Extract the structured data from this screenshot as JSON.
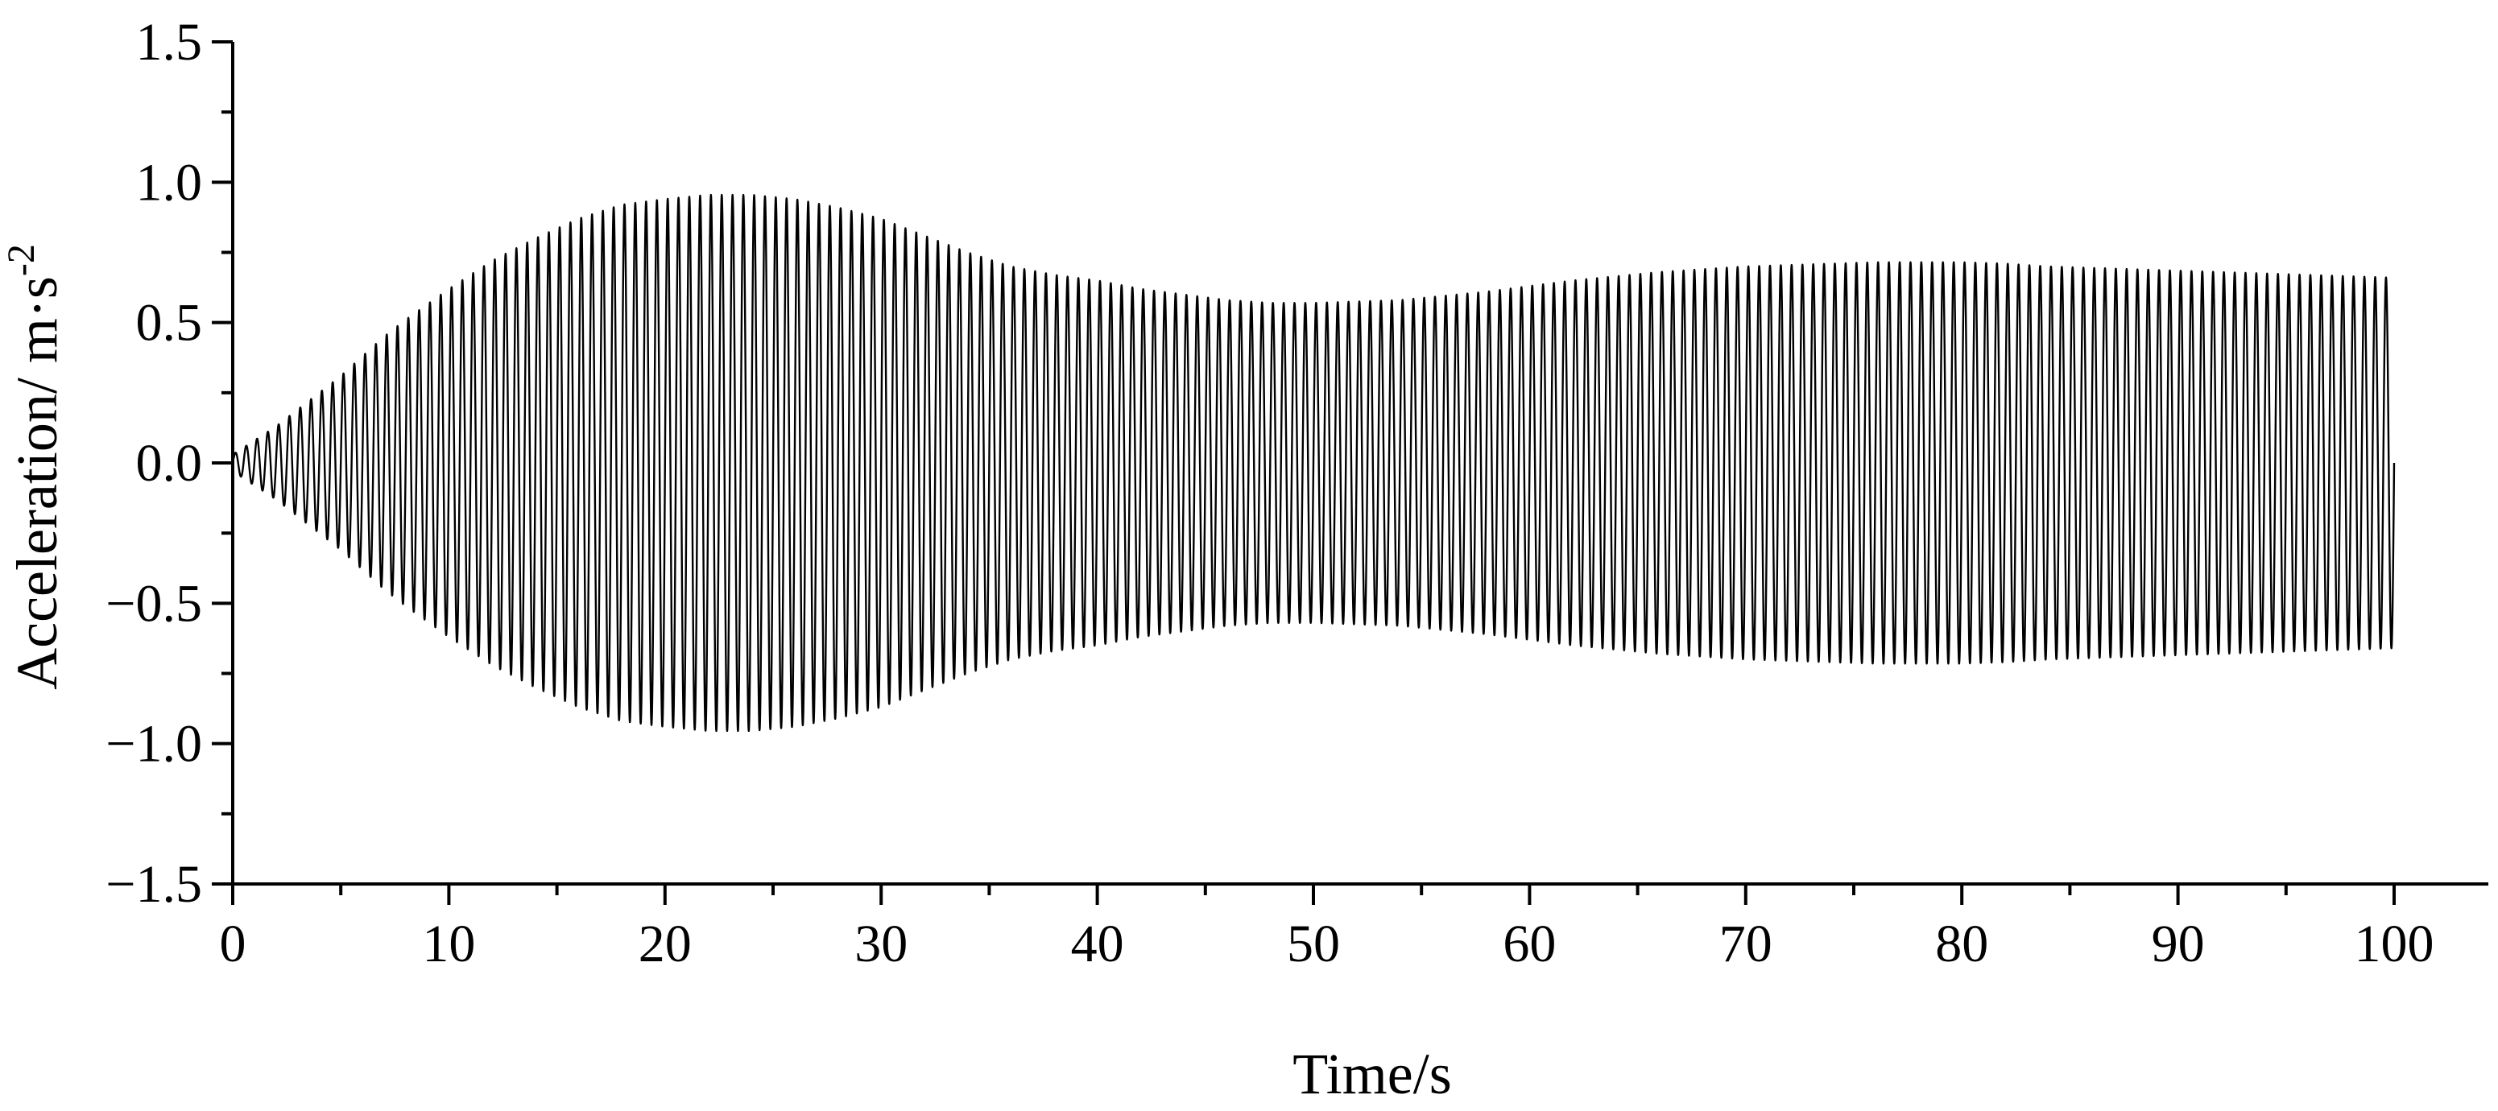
{
  "chart_data": {
    "type": "line",
    "title": "",
    "xlabel": "Time/s",
    "ylabel_main": "Acceleration/ m·s",
    "ylabel_sup": "-2",
    "xlim": [
      0,
      100
    ],
    "ylim": [
      -1.5,
      1.5
    ],
    "x_ticks": [
      {
        "value": 0,
        "label": "0"
      },
      {
        "value": 10,
        "label": "10"
      },
      {
        "value": 20,
        "label": "20"
      },
      {
        "value": 30,
        "label": "30"
      },
      {
        "value": 40,
        "label": "40"
      },
      {
        "value": 50,
        "label": "50"
      },
      {
        "value": 60,
        "label": "60"
      },
      {
        "value": 70,
        "label": "70"
      },
      {
        "value": 80,
        "label": "80"
      },
      {
        "value": 90,
        "label": "90"
      },
      {
        "value": 100,
        "label": "100"
      }
    ],
    "y_ticks": [
      {
        "value": 1.5,
        "label": "1.5"
      },
      {
        "value": 1.0,
        "label": "1.0"
      },
      {
        "value": 0.5,
        "label": "0.5"
      },
      {
        "value": 0.0,
        "label": "0.0"
      },
      {
        "value": -0.5,
        "label": "−0.5"
      },
      {
        "value": -1.0,
        "label": "−1.0"
      },
      {
        "value": -1.5,
        "label": "−1.5"
      }
    ],
    "grid": false,
    "series": [
      {
        "signal_frequency_hz": 2,
        "envelope": {
          "t": [
            0,
            1,
            2,
            3,
            4,
            5,
            6,
            7,
            8,
            10,
            12,
            14,
            16,
            18,
            20,
            22,
            24,
            26,
            28,
            30,
            32,
            34,
            36,
            38,
            40,
            42,
            44,
            46,
            48,
            50,
            52,
            54,
            56,
            58,
            60,
            62,
            64,
            66,
            68,
            70,
            72,
            74,
            76,
            78,
            80,
            82,
            84,
            86,
            88,
            90,
            92,
            94,
            96,
            98,
            100
          ],
          "amplitude": [
            0.03,
            0.08,
            0.13,
            0.19,
            0.25,
            0.31,
            0.38,
            0.45,
            0.51,
            0.62,
            0.72,
            0.8,
            0.87,
            0.92,
            0.94,
            0.955,
            0.955,
            0.94,
            0.91,
            0.87,
            0.81,
            0.75,
            0.7,
            0.67,
            0.65,
            0.62,
            0.6,
            0.58,
            0.57,
            0.57,
            0.575,
            0.58,
            0.595,
            0.61,
            0.63,
            0.65,
            0.665,
            0.68,
            0.69,
            0.7,
            0.705,
            0.71,
            0.715,
            0.715,
            0.715,
            0.71,
            0.7,
            0.695,
            0.69,
            0.685,
            0.68,
            0.675,
            0.67,
            0.665,
            0.66
          ]
        }
      }
    ]
  }
}
